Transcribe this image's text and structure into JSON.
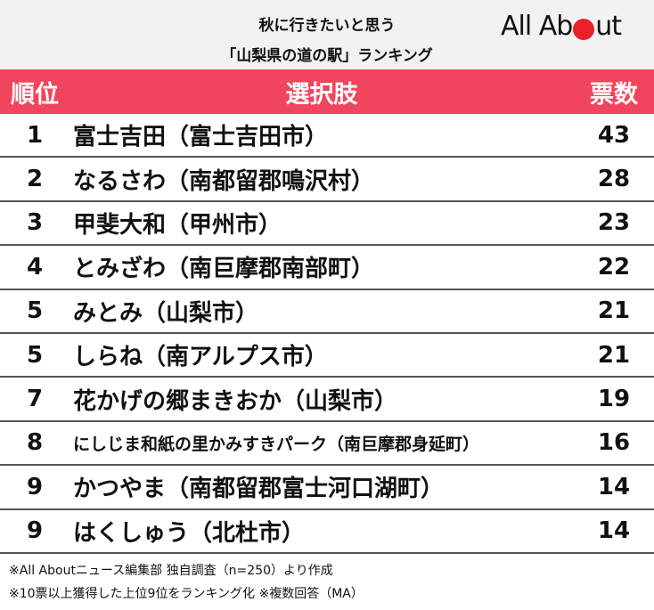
{
  "header": {
    "title_lines": [
      "秋に行きたいと思う",
      "「山梨県の道の駅」ランキング"
    ],
    "logo": {
      "left": "All Ab",
      "right": "ut"
    }
  },
  "table": {
    "columns": [
      "順位",
      "選択肢",
      "票数"
    ],
    "rows": [
      [
        "1",
        "富士吉田（富士吉田市）",
        "43"
      ],
      [
        "2",
        "なるさわ（南都留郡鳴沢村）",
        "28"
      ],
      [
        "3",
        "甲斐大和（甲州市）",
        "23"
      ],
      [
        "4",
        "とみざわ（南巨摩郡南部町）",
        "22"
      ],
      [
        "5",
        "みとみ（山梨市）",
        "21"
      ],
      [
        "5",
        "しらね（南アルプス市）",
        "21"
      ],
      [
        "7",
        "花かげの郷まきおか（山梨市）",
        "19"
      ],
      [
        "8",
        "にしじま和紙の里かみすきパーク（南巨摩郡身延町）",
        "16"
      ],
      [
        "9",
        "かつやま（南都留郡富士河口湖町）",
        "14"
      ],
      [
        "9",
        "はくしゅう（北杜市）",
        "14"
      ]
    ]
  },
  "footnotes": [
    "※All Aboutニュース編集部 独自調査（n=250）より作成",
    "※10票以上獲得した上位9位をランキング化 ※複数回答（MA）"
  ]
}
